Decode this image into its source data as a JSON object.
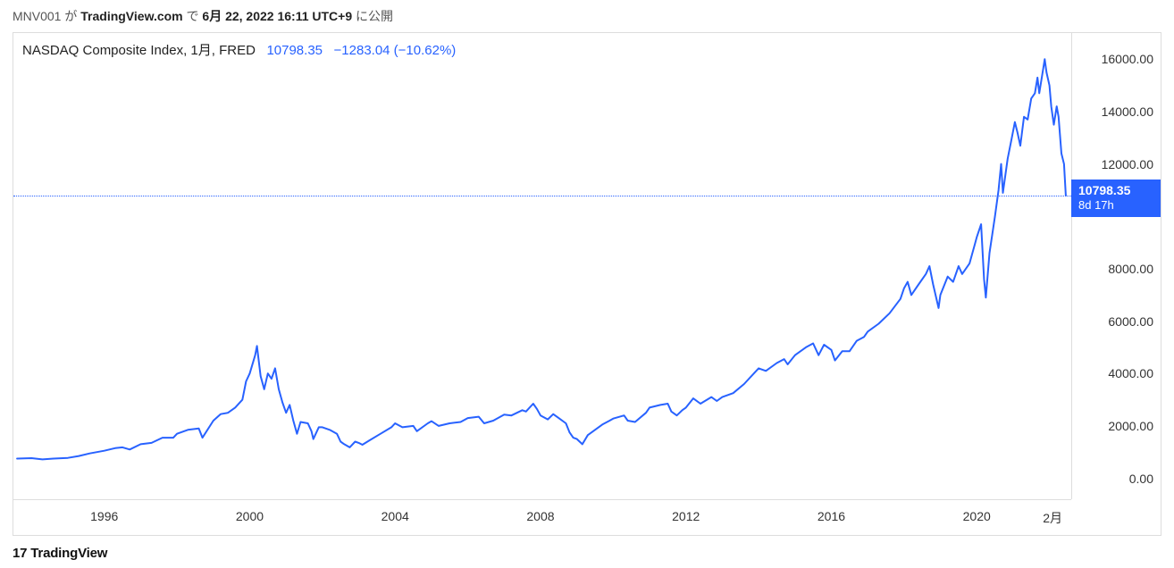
{
  "header": {
    "prefix": "MNV001 が",
    "site": "TradingView.com",
    "middle": "で",
    "timestamp": "6月 22, 2022 16:11 UTC+9",
    "suffix": "に公開"
  },
  "legend": {
    "name": "NASDAQ Composite Index, 1月, FRED",
    "value": "10798.35",
    "change": "−1283.04 (−10.62%)"
  },
  "price_flag": {
    "value": "10798.35",
    "countdown": "8d 17h",
    "y_value": 10798.35
  },
  "chart": {
    "type": "line",
    "line_color": "#2862ff",
    "line_width": 2,
    "background_color": "#ffffff",
    "border_color": "#dddddd",
    "ref_line_color": "#2862ff",
    "x_range": [
      1993.5,
      2022.6
    ],
    "y_range": [
      -800,
      17000
    ],
    "y_ticks": [
      {
        "v": 0,
        "label": "0.00"
      },
      {
        "v": 2000,
        "label": "2000.00"
      },
      {
        "v": 4000,
        "label": "4000.00"
      },
      {
        "v": 6000,
        "label": "6000.00"
      },
      {
        "v": 8000,
        "label": "8000.00"
      },
      {
        "v": 10798.35,
        "label": "10798.35",
        "flag": true
      },
      {
        "v": 12000,
        "label": "12000.00"
      },
      {
        "v": 14000,
        "label": "14000.00"
      },
      {
        "v": 16000,
        "label": "16000.00"
      }
    ],
    "x_ticks": [
      {
        "v": 1996,
        "label": "1996"
      },
      {
        "v": 2000,
        "label": "2000"
      },
      {
        "v": 2004,
        "label": "2004"
      },
      {
        "v": 2008,
        "label": "2008"
      },
      {
        "v": 2012,
        "label": "2012"
      },
      {
        "v": 2016,
        "label": "2016"
      },
      {
        "v": 2020,
        "label": "2020"
      }
    ],
    "x_unit_label": "2月",
    "series": [
      [
        1993.6,
        750
      ],
      [
        1994.0,
        770
      ],
      [
        1994.3,
        720
      ],
      [
        1994.6,
        750
      ],
      [
        1995.0,
        780
      ],
      [
        1995.3,
        850
      ],
      [
        1995.6,
        950
      ],
      [
        1996.0,
        1050
      ],
      [
        1996.3,
        1150
      ],
      [
        1996.5,
        1180
      ],
      [
        1996.7,
        1100
      ],
      [
        1997.0,
        1300
      ],
      [
        1997.3,
        1350
      ],
      [
        1997.6,
        1550
      ],
      [
        1997.9,
        1550
      ],
      [
        1998.0,
        1700
      ],
      [
        1998.3,
        1850
      ],
      [
        1998.6,
        1900
      ],
      [
        1998.7,
        1550
      ],
      [
        1999.0,
        2200
      ],
      [
        1999.2,
        2450
      ],
      [
        1999.4,
        2500
      ],
      [
        1999.6,
        2700
      ],
      [
        1999.8,
        3000
      ],
      [
        1999.9,
        3700
      ],
      [
        2000.0,
        4000
      ],
      [
        2000.15,
        4700
      ],
      [
        2000.2,
        5050
      ],
      [
        2000.3,
        3900
      ],
      [
        2000.4,
        3400
      ],
      [
        2000.5,
        4000
      ],
      [
        2000.6,
        3800
      ],
      [
        2000.7,
        4200
      ],
      [
        2000.8,
        3400
      ],
      [
        2000.9,
        2900
      ],
      [
        2001.0,
        2500
      ],
      [
        2001.1,
        2800
      ],
      [
        2001.2,
        2200
      ],
      [
        2001.3,
        1700
      ],
      [
        2001.4,
        2150
      ],
      [
        2001.6,
        2100
      ],
      [
        2001.7,
        1800
      ],
      [
        2001.75,
        1500
      ],
      [
        2001.9,
        1950
      ],
      [
        2002.0,
        1950
      ],
      [
        2002.2,
        1850
      ],
      [
        2002.4,
        1700
      ],
      [
        2002.5,
        1400
      ],
      [
        2002.6,
        1300
      ],
      [
        2002.75,
        1180
      ],
      [
        2002.9,
        1400
      ],
      [
        2003.0,
        1350
      ],
      [
        2003.1,
        1280
      ],
      [
        2003.3,
        1450
      ],
      [
        2003.6,
        1700
      ],
      [
        2003.9,
        1950
      ],
      [
        2004.0,
        2100
      ],
      [
        2004.2,
        1950
      ],
      [
        2004.5,
        2000
      ],
      [
        2004.6,
        1800
      ],
      [
        2004.9,
        2100
      ],
      [
        2005.0,
        2180
      ],
      [
        2005.2,
        2000
      ],
      [
        2005.5,
        2100
      ],
      [
        2005.8,
        2150
      ],
      [
        2006.0,
        2300
      ],
      [
        2006.3,
        2350
      ],
      [
        2006.45,
        2100
      ],
      [
        2006.7,
        2200
      ],
      [
        2007.0,
        2430
      ],
      [
        2007.2,
        2400
      ],
      [
        2007.5,
        2600
      ],
      [
        2007.6,
        2550
      ],
      [
        2007.8,
        2850
      ],
      [
        2007.9,
        2650
      ],
      [
        2008.0,
        2400
      ],
      [
        2008.2,
        2250
      ],
      [
        2008.35,
        2450
      ],
      [
        2008.5,
        2300
      ],
      [
        2008.7,
        2100
      ],
      [
        2008.8,
        1750
      ],
      [
        2008.9,
        1550
      ],
      [
        2009.0,
        1500
      ],
      [
        2009.15,
        1300
      ],
      [
        2009.3,
        1650
      ],
      [
        2009.5,
        1850
      ],
      [
        2009.7,
        2050
      ],
      [
        2009.9,
        2200
      ],
      [
        2010.0,
        2280
      ],
      [
        2010.3,
        2400
      ],
      [
        2010.4,
        2200
      ],
      [
        2010.6,
        2150
      ],
      [
        2010.9,
        2500
      ],
      [
        2011.0,
        2700
      ],
      [
        2011.3,
        2800
      ],
      [
        2011.5,
        2850
      ],
      [
        2011.6,
        2550
      ],
      [
        2011.75,
        2400
      ],
      [
        2011.9,
        2600
      ],
      [
        2012.0,
        2700
      ],
      [
        2012.2,
        3050
      ],
      [
        2012.4,
        2850
      ],
      [
        2012.7,
        3100
      ],
      [
        2012.85,
        2950
      ],
      [
        2013.0,
        3100
      ],
      [
        2013.3,
        3250
      ],
      [
        2013.6,
        3600
      ],
      [
        2013.9,
        4050
      ],
      [
        2014.0,
        4200
      ],
      [
        2014.2,
        4100
      ],
      [
        2014.5,
        4400
      ],
      [
        2014.7,
        4550
      ],
      [
        2014.8,
        4350
      ],
      [
        2015.0,
        4700
      ],
      [
        2015.3,
        5000
      ],
      [
        2015.5,
        5150
      ],
      [
        2015.65,
        4700
      ],
      [
        2015.8,
        5100
      ],
      [
        2016.0,
        4900
      ],
      [
        2016.1,
        4500
      ],
      [
        2016.3,
        4850
      ],
      [
        2016.5,
        4850
      ],
      [
        2016.7,
        5250
      ],
      [
        2016.9,
        5400
      ],
      [
        2017.0,
        5600
      ],
      [
        2017.3,
        5900
      ],
      [
        2017.6,
        6300
      ],
      [
        2017.9,
        6850
      ],
      [
        2018.0,
        7250
      ],
      [
        2018.1,
        7500
      ],
      [
        2018.2,
        7000
      ],
      [
        2018.4,
        7400
      ],
      [
        2018.6,
        7800
      ],
      [
        2018.7,
        8100
      ],
      [
        2018.8,
        7400
      ],
      [
        2018.95,
        6500
      ],
      [
        2019.0,
        7000
      ],
      [
        2019.2,
        7700
      ],
      [
        2019.35,
        7500
      ],
      [
        2019.5,
        8100
      ],
      [
        2019.6,
        7800
      ],
      [
        2019.8,
        8200
      ],
      [
        2019.95,
        8950
      ],
      [
        2020.0,
        9200
      ],
      [
        2020.12,
        9700
      ],
      [
        2020.2,
        7600
      ],
      [
        2020.25,
        6900
      ],
      [
        2020.35,
        8600
      ],
      [
        2020.5,
        10000
      ],
      [
        2020.6,
        11000
      ],
      [
        2020.67,
        12000
      ],
      [
        2020.72,
        10900
      ],
      [
        2020.85,
        12200
      ],
      [
        2020.95,
        12900
      ],
      [
        2021.05,
        13600
      ],
      [
        2021.12,
        13200
      ],
      [
        2021.2,
        12700
      ],
      [
        2021.3,
        13800
      ],
      [
        2021.4,
        13700
      ],
      [
        2021.5,
        14500
      ],
      [
        2021.6,
        14700
      ],
      [
        2021.67,
        15300
      ],
      [
        2021.72,
        14700
      ],
      [
        2021.8,
        15400
      ],
      [
        2021.87,
        16000
      ],
      [
        2021.92,
        15500
      ],
      [
        2022.0,
        15000
      ],
      [
        2022.05,
        14200
      ],
      [
        2022.12,
        13500
      ],
      [
        2022.2,
        14200
      ],
      [
        2022.25,
        13800
      ],
      [
        2022.33,
        12400
      ],
      [
        2022.4,
        12000
      ],
      [
        2022.45,
        10798.35
      ]
    ]
  },
  "footer": {
    "glyph": "17",
    "brand": "TradingView"
  }
}
